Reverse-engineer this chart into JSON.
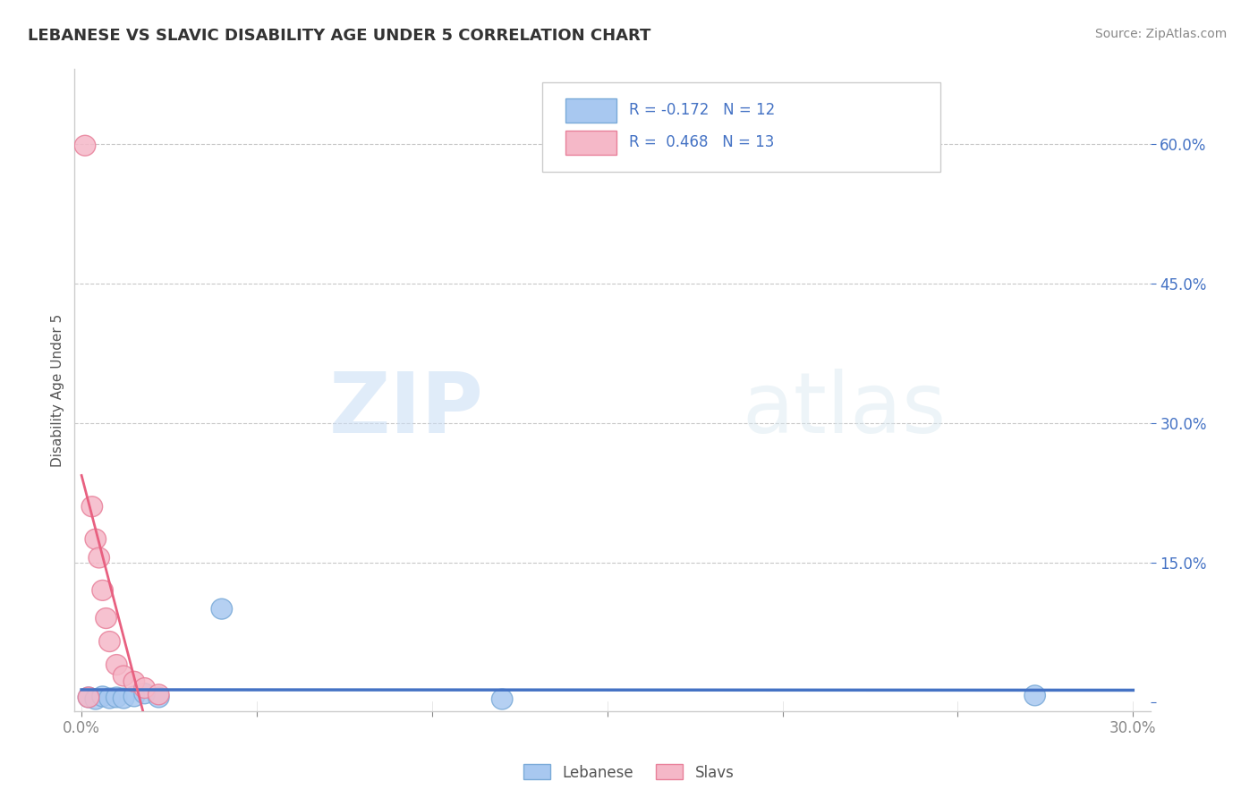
{
  "title": "LEBANESE VS SLAVIC DISABILITY AGE UNDER 5 CORRELATION CHART",
  "source": "Source: ZipAtlas.com",
  "ylabel": "Disability Age Under 5",
  "xlim": [
    -0.002,
    0.305
  ],
  "ylim": [
    -0.01,
    0.68
  ],
  "xticks": [
    0.0,
    0.05,
    0.1,
    0.15,
    0.2,
    0.25,
    0.3
  ],
  "yticks": [
    0.0,
    0.15,
    0.3,
    0.45,
    0.6
  ],
  "lebanese_x": [
    0.002,
    0.004,
    0.006,
    0.008,
    0.01,
    0.012,
    0.015,
    0.018,
    0.022,
    0.04,
    0.12,
    0.272
  ],
  "lebanese_y": [
    0.005,
    0.003,
    0.006,
    0.004,
    0.005,
    0.004,
    0.006,
    0.009,
    0.005,
    0.1,
    0.003,
    0.007
  ],
  "slavic_x": [
    0.001,
    0.002,
    0.003,
    0.004,
    0.005,
    0.006,
    0.007,
    0.008,
    0.01,
    0.012,
    0.015,
    0.018,
    0.022
  ],
  "slavic_y": [
    0.598,
    0.005,
    0.21,
    0.175,
    0.155,
    0.12,
    0.09,
    0.065,
    0.04,
    0.028,
    0.022,
    0.015,
    0.008
  ],
  "lebanese_color": "#a8c8f0",
  "slavic_color": "#f5b8c8",
  "lebanese_edge": "#7aaad8",
  "slavic_edge": "#e8809a",
  "trend_leb_color": "#4472c4",
  "trend_slav_color": "#e86080",
  "dashed_slav_color": "#f0a0b8",
  "R_leb": -0.172,
  "N_leb": 12,
  "R_slav": 0.468,
  "N_slav": 13,
  "watermark_zip": "ZIP",
  "watermark_atlas": "atlas",
  "background_color": "#ffffff",
  "grid_color": "#c8c8c8",
  "tick_color": "#4472c4",
  "spine_color": "#cccccc"
}
